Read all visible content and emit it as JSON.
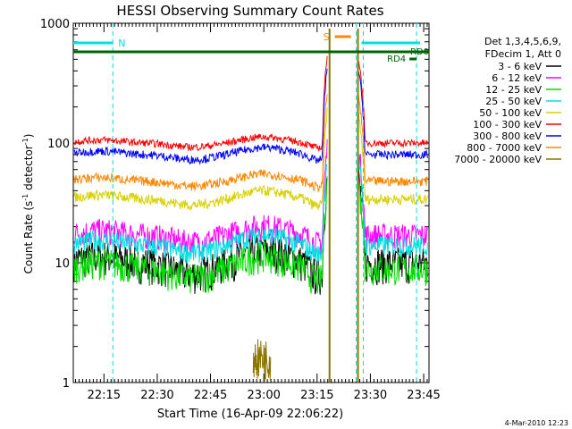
{
  "chart_data": {
    "type": "line",
    "title": "HESSI Observing Summary Count Rates",
    "xlabel": "Start Time (16-Apr-09 22:06:22)",
    "ylabel_main": "Count Rate (s",
    "ylabel_sup1": "-1",
    "ylabel_mid": " detector",
    "ylabel_sup2": "-1",
    "ylabel_end": ")",
    "yscale": "log",
    "ylim": [
      1,
      1000
    ],
    "y_tick_labels": [
      "1",
      "10",
      "100",
      "1000"
    ],
    "x_range_minutes": [
      "22:06:22",
      "23:46:30"
    ],
    "x_tick_labels": [
      "22:15",
      "22:30",
      "22:45",
      "23:00",
      "23:15",
      "23:30",
      "23:45"
    ],
    "x_tick_times": [
      "22:15",
      "22:30",
      "22:45",
      "23:00",
      "23:15",
      "23:30",
      "23:45"
    ],
    "footer_date": "4-Mar-2010 12:23",
    "legend_header": [
      "Det 1,3,4,5,6,9,",
      "FDecim 1, Att 0"
    ],
    "series": [
      {
        "name": "3 - 6 keV",
        "color": "#000000",
        "base": 10
      },
      {
        "name": "6 - 12 keV",
        "color": "#ff00ff",
        "base": 17
      },
      {
        "name": "12 - 25 keV",
        "color": "#00dd00",
        "base": 9
      },
      {
        "name": "25 - 50 keV",
        "color": "#00e0e0",
        "base": 14
      },
      {
        "name": "50 - 100 keV",
        "color": "#d8d000",
        "base": 34
      },
      {
        "name": "100 - 300 keV",
        "color": "#ff0000",
        "base": 100
      },
      {
        "name": "300 - 800 keV",
        "color": "#0000ff",
        "base": 80
      },
      {
        "name": "800 - 7000 keV",
        "color": "#ff8800",
        "base": 48
      },
      {
        "name": "7000 - 20000 keV",
        "color": "#8b7500",
        "base": 1
      }
    ],
    "series_values_note_points": [
      {
        "t": "22:07",
        "v": [
          10,
          17,
          9,
          14,
          34,
          100,
          80,
          48
        ]
      },
      {
        "t": "22:15",
        "v": [
          11,
          18,
          10,
          15,
          38,
          110,
          85,
          53
        ]
      },
      {
        "t": "22:30",
        "v": [
          9,
          16,
          8,
          13,
          33,
          95,
          75,
          46
        ]
      },
      {
        "t": "22:40",
        "v": [
          7,
          13,
          7,
          11,
          28,
          85,
          68,
          40
        ]
      },
      {
        "t": "23:00",
        "v": [
          12,
          19,
          12,
          18,
          45,
          102,
          90,
          57
        ]
      },
      {
        "t": "23:15",
        "v": [
          7,
          13,
          7,
          11,
          28,
          80,
          65,
          42
        ]
      }
    ],
    "annotations": [
      {
        "label": "N",
        "color": "#00e0e0"
      },
      {
        "label": "S",
        "color": "#ff8800"
      },
      {
        "label": "RD0",
        "color": "#006400"
      },
      {
        "label": "RD4",
        "color": "#006400"
      }
    ]
  }
}
